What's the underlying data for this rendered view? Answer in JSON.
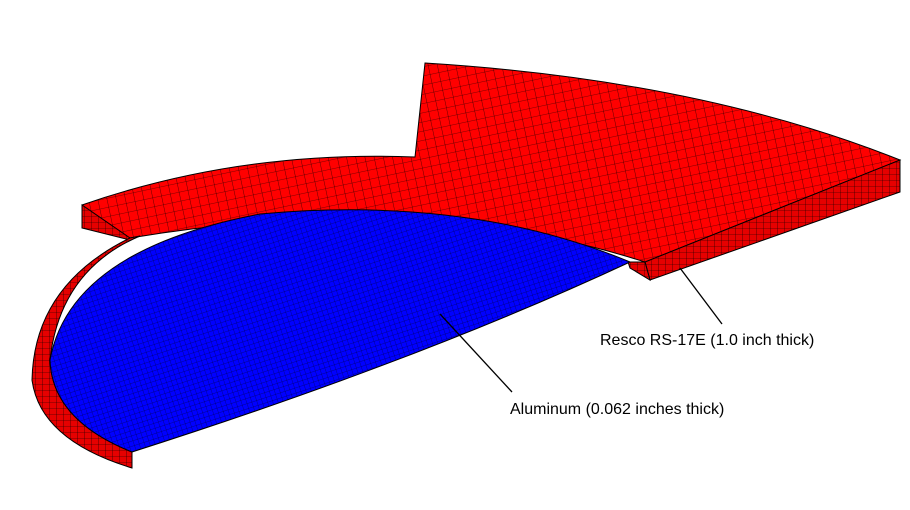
{
  "annotations": [
    "Resco RS-17E (1.0 inch thick)",
    "Aluminum (0.062 inches thick)"
  ]
}
